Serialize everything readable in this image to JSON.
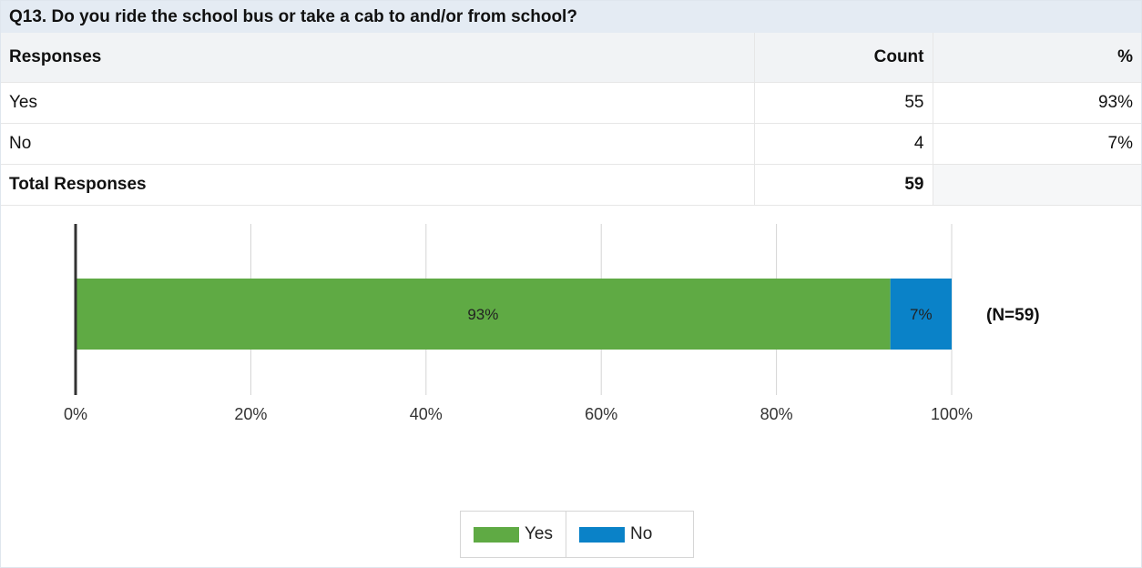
{
  "question": "Q13.  Do you ride the school bus or take a cab to and/or from school?",
  "table": {
    "headers": [
      "Responses",
      "Count",
      "%"
    ],
    "rows": [
      {
        "label": "Yes",
        "count": "55",
        "pct": "93%"
      },
      {
        "label": "No",
        "count": "4",
        "pct": "7%"
      }
    ],
    "total": {
      "label": "Total Responses",
      "count": "59",
      "pct": ""
    }
  },
  "chart_data": {
    "type": "bar",
    "orientation": "horizontal-stacked",
    "series": [
      {
        "name": "Yes",
        "values": [
          93
        ],
        "color": "#5faa44",
        "label": "93%"
      },
      {
        "name": "No",
        "values": [
          7
        ],
        "color": "#0a82c8",
        "label": "7%"
      }
    ],
    "xlim": [
      0,
      100
    ],
    "ticks": [
      "0%",
      "20%",
      "40%",
      "60%",
      "80%",
      "100%"
    ],
    "grid": true,
    "annotation": "(N=59)",
    "legend_position": "bottom"
  }
}
